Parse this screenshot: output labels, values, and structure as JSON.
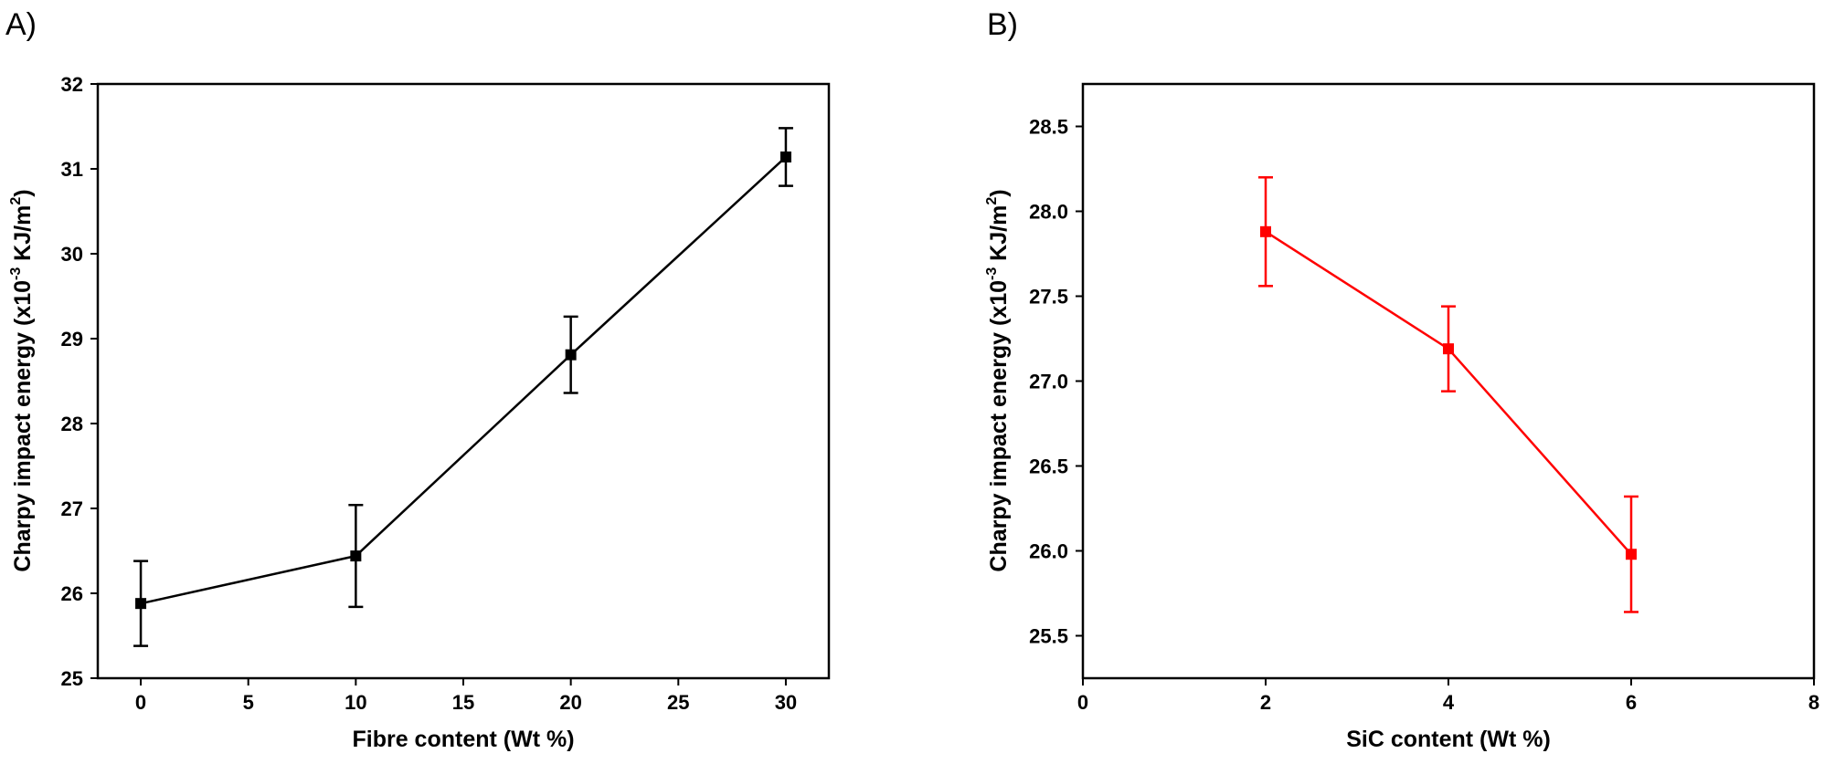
{
  "chart_data": [
    {
      "panel_label": "A)",
      "type": "line",
      "xlabel": "Fibre content (Wt %)",
      "ylabel": {
        "pre": "Charpy impact energy (x10",
        "sup1": "-3",
        "mid": " KJ/m",
        "sup2": "2",
        "post": ")"
      },
      "xlim": [
        -2,
        32
      ],
      "ylim": [
        25,
        32
      ],
      "xticks": [
        "0",
        "5",
        "10",
        "15",
        "20",
        "25",
        "30"
      ],
      "yticks": [
        "25",
        "26",
        "27",
        "28",
        "29",
        "30",
        "31",
        "32"
      ],
      "color": "#000000",
      "grid": false,
      "series": [
        {
          "x": [
            0,
            10,
            20,
            30
          ],
          "y": [
            25.88,
            26.44,
            28.81,
            31.14
          ],
          "error": [
            0.5,
            0.6,
            0.45,
            0.34
          ]
        }
      ]
    },
    {
      "panel_label": "B)",
      "type": "line",
      "xlabel": "SiC content (Wt %)",
      "ylabel": {
        "pre": "Charpy impact energy (x10",
        "sup1": "-3",
        "mid": " KJ/m",
        "sup2": "2",
        "post": ")"
      },
      "xlim": [
        0,
        8
      ],
      "ylim": [
        25.25,
        28.75
      ],
      "xticks": [
        "0",
        "2",
        "4",
        "6",
        "8"
      ],
      "yticks": [
        "25.5",
        "26.0",
        "26.5",
        "27.0",
        "27.5",
        "28.0",
        "28.5"
      ],
      "color": "#ff0000",
      "grid": false,
      "series": [
        {
          "x": [
            2,
            4,
            6
          ],
          "y": [
            27.88,
            27.19,
            25.98
          ],
          "error": [
            0.32,
            0.25,
            0.34
          ]
        }
      ]
    }
  ]
}
